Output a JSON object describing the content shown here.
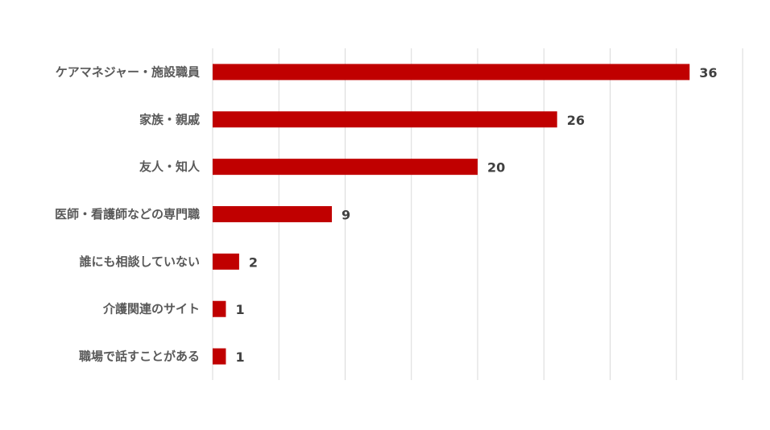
{
  "chart_data": {
    "type": "bar",
    "orientation": "horizontal",
    "categories": [
      "ケアマネジャー・施設職員",
      "家族・親戚",
      "友人・知人",
      "医師・看護師などの専門職",
      "誰にも相談していない",
      "介護関連のサイト",
      "職場で話すことがある"
    ],
    "values": [
      36,
      26,
      20,
      9,
      2,
      1,
      1
    ],
    "xlim": [
      0,
      40
    ],
    "grid": true,
    "legend": "none",
    "bar_color": "#c00000",
    "title": "",
    "xlabel": "",
    "ylabel": ""
  }
}
